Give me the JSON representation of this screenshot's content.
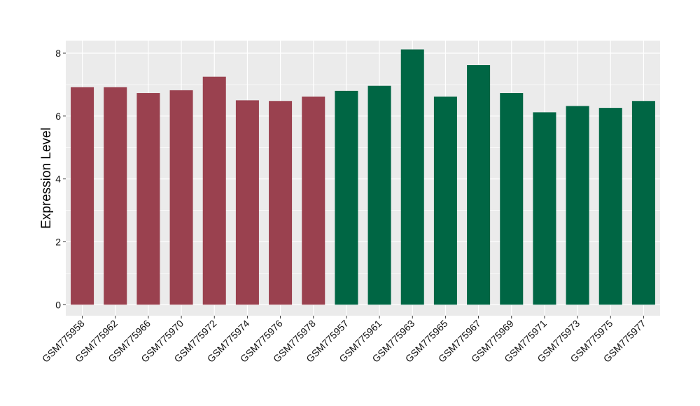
{
  "chart_data": {
    "type": "bar",
    "title": "",
    "xlabel": "",
    "ylabel": "Expression Level",
    "ylim": [
      -0.35,
      8.4
    ],
    "yticks": [
      0,
      2,
      4,
      6,
      8
    ],
    "grid": true,
    "legend": "none",
    "panel_background": "#EBEBEB",
    "grid_color": "#FFFFFF",
    "categories": [
      "GSM775958",
      "GSM775962",
      "GSM775966",
      "GSM775970",
      "GSM775972",
      "GSM775974",
      "GSM775976",
      "GSM775978",
      "GSM775957",
      "GSM775961",
      "GSM775963",
      "GSM775965",
      "GSM775967",
      "GSM775969",
      "GSM775971",
      "GSM775973",
      "GSM775975",
      "GSM775977"
    ],
    "values": [
      6.92,
      6.92,
      6.73,
      6.82,
      7.25,
      6.5,
      6.48,
      6.62,
      6.8,
      6.96,
      8.12,
      6.62,
      7.62,
      6.73,
      6.12,
      6.32,
      6.26,
      6.48
    ],
    "group_colors": [
      "#9A414F",
      "#9A414F",
      "#9A414F",
      "#9A414F",
      "#9A414F",
      "#9A414F",
      "#9A414F",
      "#9A414F",
      "#006644",
      "#006644",
      "#006644",
      "#006644",
      "#006644",
      "#006644",
      "#006644",
      "#006644",
      "#006644",
      "#006644"
    ]
  }
}
